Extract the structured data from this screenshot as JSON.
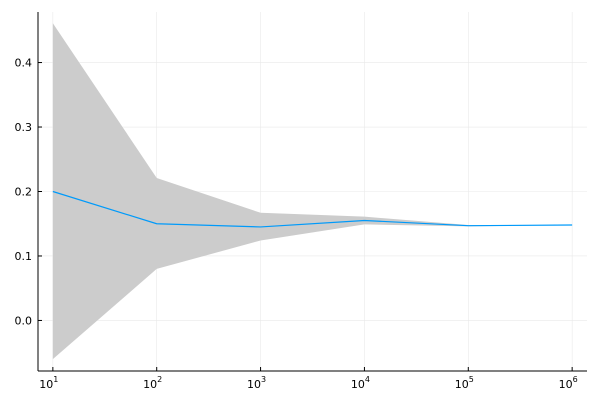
{
  "chart_data": {
    "type": "line",
    "x_scale": "log10",
    "xlim": [
      10,
      1000000
    ],
    "ylim": [
      -0.0784,
      0.4784
    ],
    "grid": true,
    "legend": "none",
    "x_ticks": [
      {
        "value": 10,
        "base": "10",
        "exp": "1"
      },
      {
        "value": 100,
        "base": "10",
        "exp": "2"
      },
      {
        "value": 1000,
        "base": "10",
        "exp": "3"
      },
      {
        "value": 10000,
        "base": "10",
        "exp": "4"
      },
      {
        "value": 100000,
        "base": "10",
        "exp": "5"
      },
      {
        "value": 1000000,
        "base": "10",
        "exp": "6"
      }
    ],
    "y_ticks": [
      {
        "value": 0.0,
        "label": "0.0"
      },
      {
        "value": 0.1,
        "label": "0.1"
      },
      {
        "value": 0.2,
        "label": "0.2"
      },
      {
        "value": 0.3,
        "label": "0.3"
      },
      {
        "value": 0.4,
        "label": "0.4"
      }
    ],
    "series": [
      {
        "x": [
          10,
          100,
          1000,
          10000,
          100000,
          1000000
        ],
        "y": [
          0.2,
          0.15,
          0.145,
          0.155,
          0.147,
          0.148
        ],
        "lower": [
          -0.06,
          0.08,
          0.124,
          0.149,
          0.146,
          0.148
        ],
        "upper": [
          0.461,
          0.221,
          0.167,
          0.161,
          0.148,
          0.148
        ],
        "line_color": "#009AFA",
        "band_color": "#CCCCCC"
      }
    ]
  }
}
